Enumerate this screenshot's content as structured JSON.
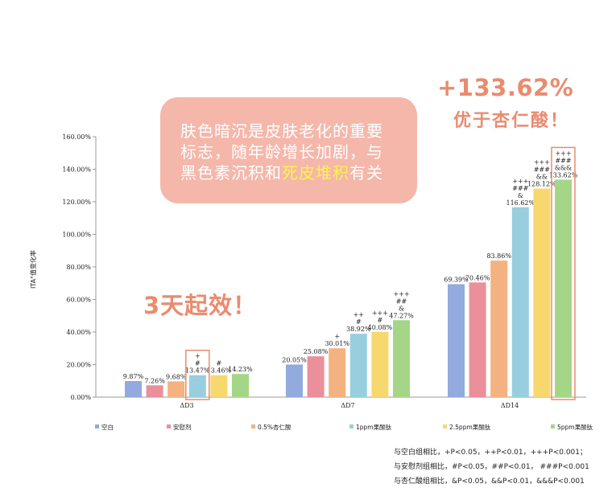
{
  "callout": {
    "line1": "肤色暗沉是皮肤老化的重要",
    "line2": "标志，随年龄增长加剧，与",
    "line3_pre": "黑色素沉积和",
    "line3_hl": "死皮堆积",
    "line3_post": "有关"
  },
  "headline": {
    "pct": "+133.62%",
    "sub": "优于杏仁酸！"
  },
  "three_day": "3天起效！",
  "notes": [
    "与空白组相比，+P<0.05，++P<0.01，+++P<0.001；",
    "与安慰剂组相比，#P<0.05，##P<0.01， ###P<0.001",
    "与杏仁酸组相比，&P<0.05，&&P<0.01，&&&P<0.001"
  ],
  "colors": {
    "accent": "#ea8b6e",
    "callout_bg": "#f4b7aa",
    "highlight": "#fff34d",
    "series": [
      "#92aadd",
      "#eb8f9b",
      "#f3b27f",
      "#98cede",
      "#f7d86f",
      "#a5d688"
    ]
  },
  "chart_data": {
    "type": "bar",
    "ylabel": "ITA°值变化率",
    "ylim": [
      0,
      160
    ],
    "yticks": [
      "0.00%",
      "20.00%",
      "40.00%",
      "60.00%",
      "80.00%",
      "100.00%",
      "120.00%",
      "140.00%",
      "160.00%"
    ],
    "categories": [
      "ΔD3",
      "ΔD7",
      "ΔD14"
    ],
    "series": [
      {
        "name": "空白",
        "values": [
          9.87,
          20.05,
          69.39
        ],
        "labels": [
          "9.87%",
          "20.05%",
          "69.39%"
        ],
        "marks": [
          "",
          "",
          ""
        ]
      },
      {
        "name": "安慰剂",
        "values": [
          7.26,
          25.08,
          70.46
        ],
        "labels": [
          "7.26%",
          "25.08%",
          "70.46%"
        ],
        "marks": [
          "",
          "",
          ""
        ]
      },
      {
        "name": "0.5%杏仁酸",
        "values": [
          9.68,
          30.01,
          83.86
        ],
        "labels": [
          "9.68%",
          "30.01%",
          "83.86%"
        ],
        "marks": [
          "",
          "+",
          ""
        ]
      },
      {
        "name": "1ppm果酸肽",
        "values": [
          13.47,
          38.92,
          116.62
        ],
        "labels": [
          "13.47%",
          "38.92%",
          "116.62%"
        ],
        "marks": [
          "+|#",
          "++|#",
          "+++|###|&"
        ]
      },
      {
        "name": "2.5ppm果酸肽",
        "values": [
          13.46,
          40.08,
          128.12
        ],
        "labels": [
          "13.46%",
          "40.08%",
          "128.12%"
        ],
        "marks": [
          "#",
          "+++|#",
          "+++|###|&&"
        ]
      },
      {
        "name": "5ppm果酸肽",
        "values": [
          14.23,
          47.27,
          133.62
        ],
        "labels": [
          "14.23%",
          "47.27%",
          "133.62%"
        ],
        "marks": [
          "",
          "+++|##|&",
          "+++|###|&&&"
        ]
      }
    ]
  }
}
